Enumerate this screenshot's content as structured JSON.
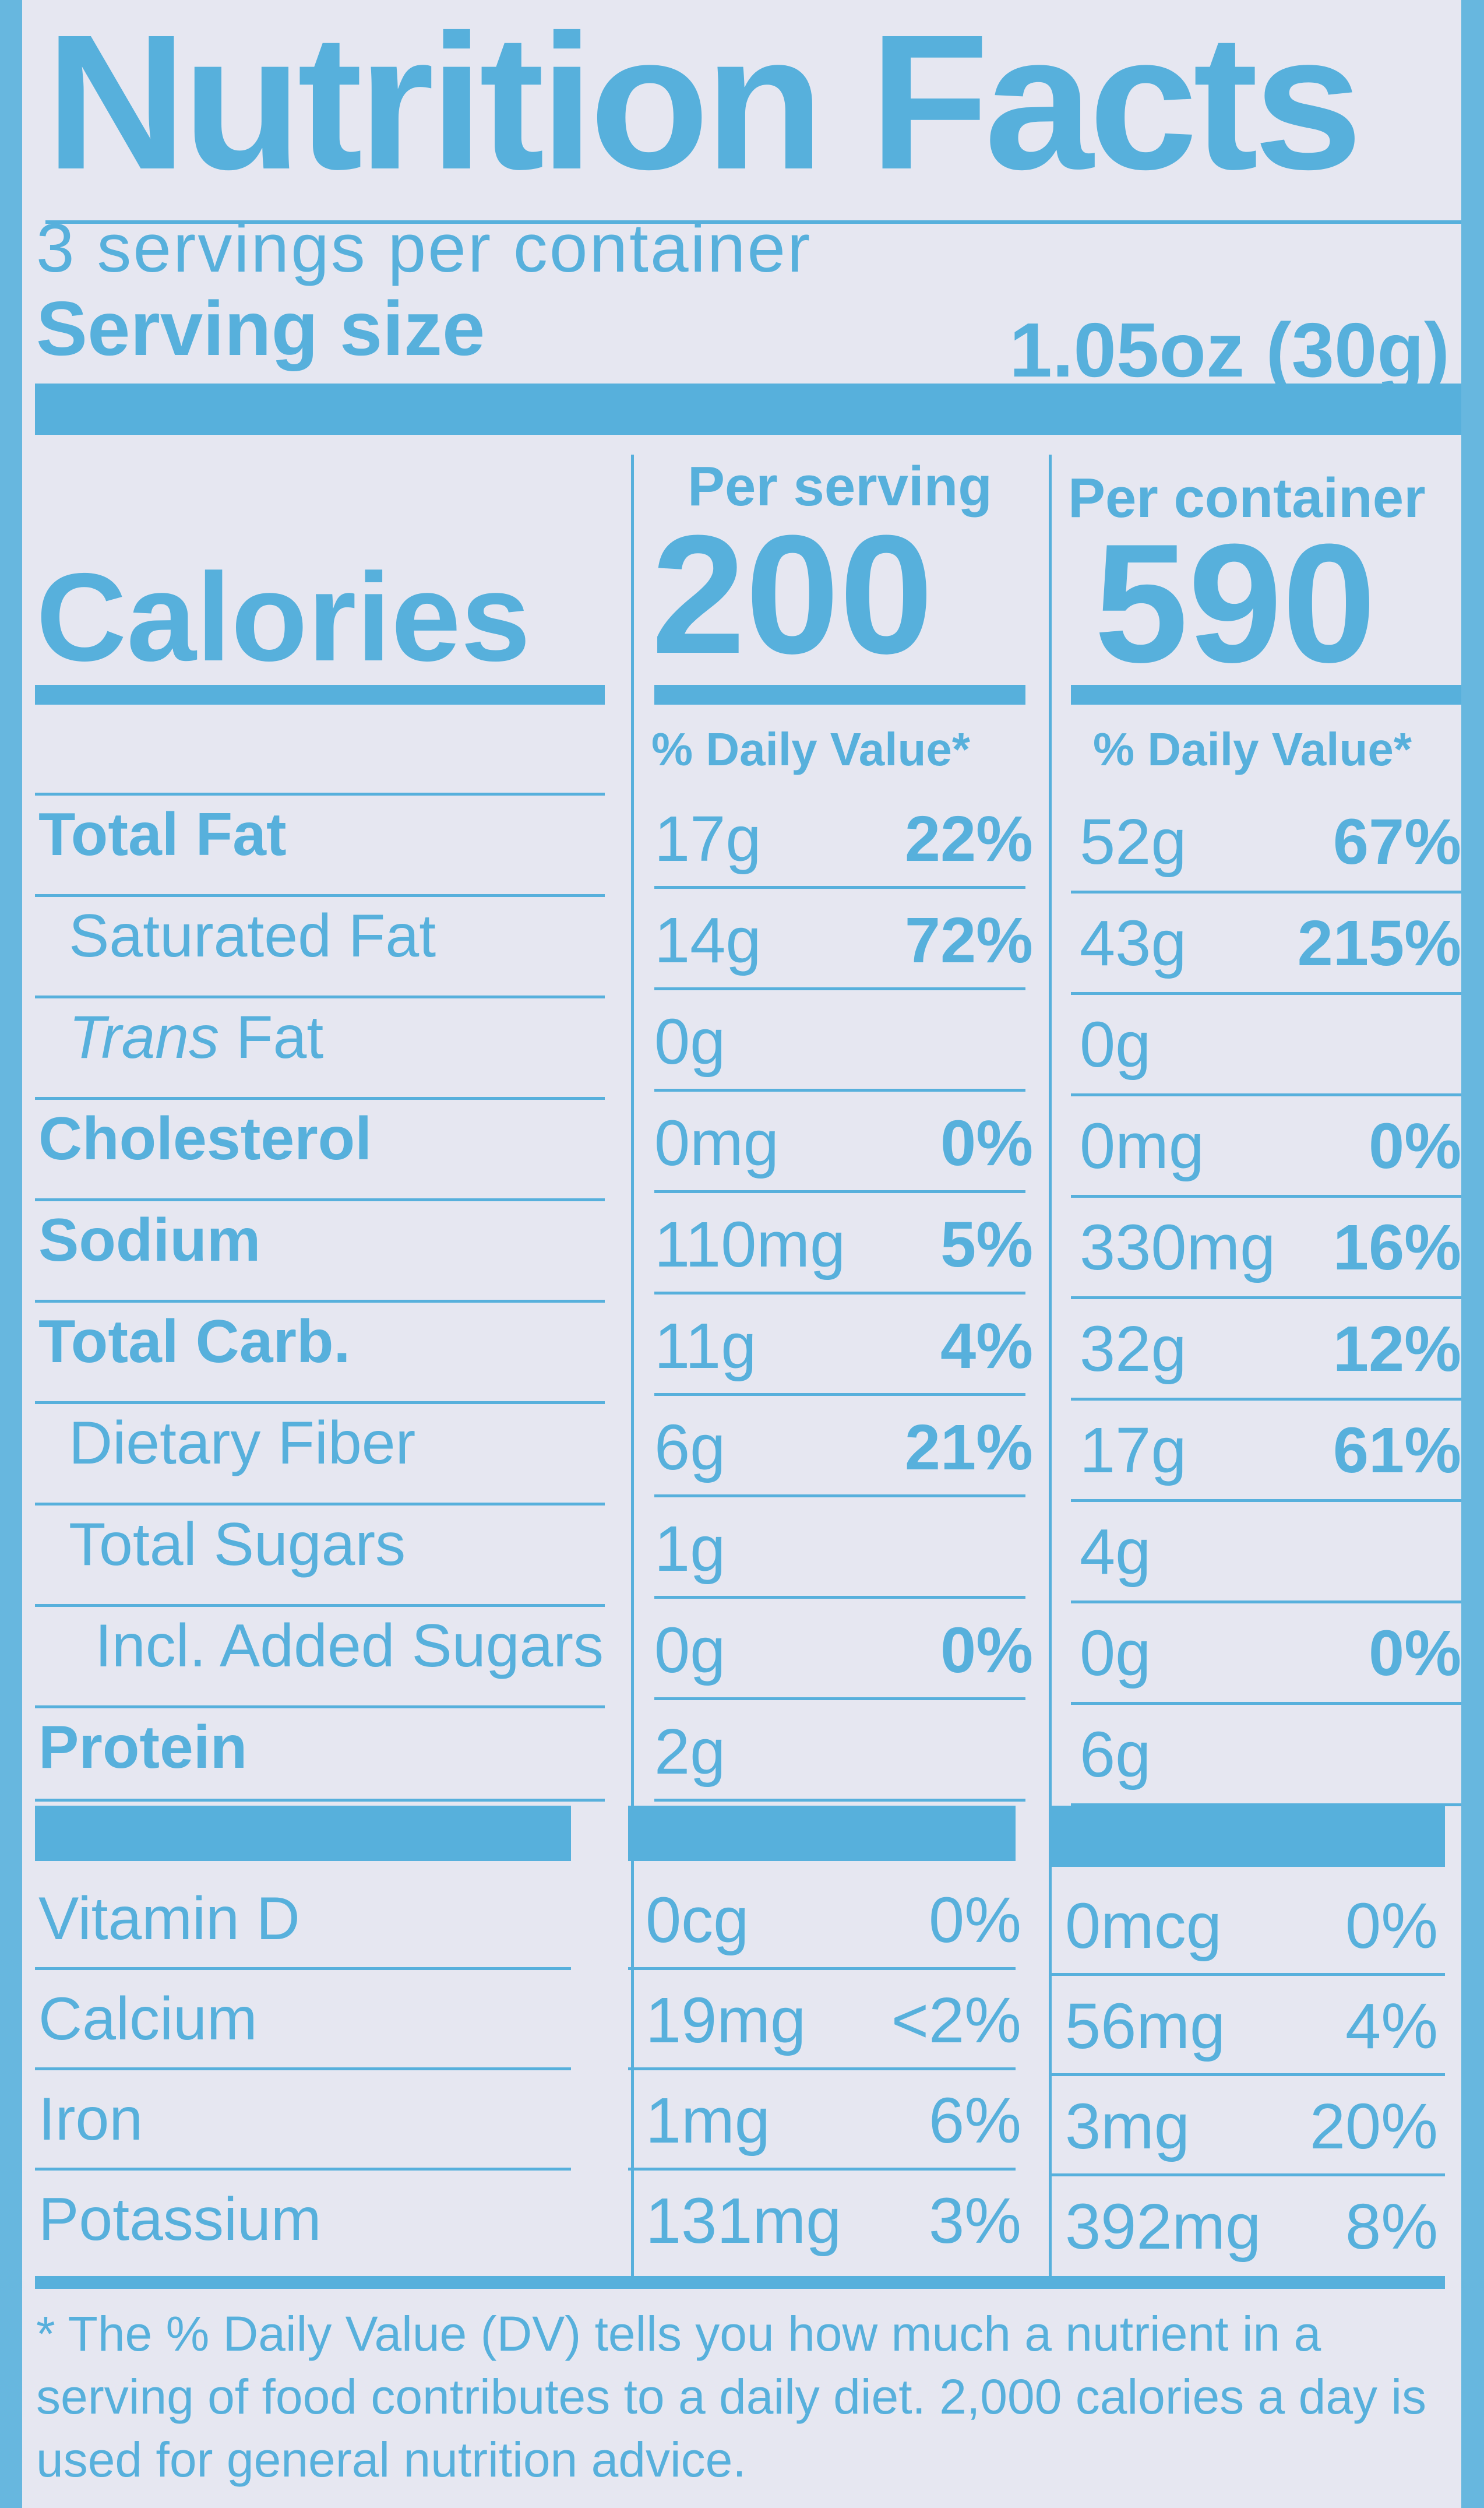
{
  "title": "Nutrition Facts",
  "servings_per_container": "3 servings per container",
  "serving_size": {
    "label": "Serving size",
    "value": "1.05oz (30g)"
  },
  "columns": {
    "per_serving": "Per serving",
    "per_container": "Per container",
    "daily_value_header": "% Daily Value*"
  },
  "calories": {
    "label": "Calories",
    "per_serving": "200",
    "per_container": "590"
  },
  "nutrients": [
    {
      "name": "Total Fat",
      "style": "bold",
      "serving_amount": "17g",
      "serving_dv": "22%",
      "container_amount": "52g",
      "container_dv": "67%"
    },
    {
      "name": "Saturated Fat",
      "style": "indent",
      "serving_amount": "14g",
      "serving_dv": "72%",
      "container_amount": "43g",
      "container_dv": "215%"
    },
    {
      "name_italic": "Trans",
      "name": "Fat",
      "style": "indent",
      "serving_amount": "0g",
      "serving_dv": "",
      "container_amount": "0g",
      "container_dv": ""
    },
    {
      "name": "Cholesterol",
      "style": "bold",
      "serving_amount": "0mg",
      "serving_dv": "0%",
      "container_amount": "0mg",
      "container_dv": "0%"
    },
    {
      "name": "Sodium",
      "style": "bold",
      "serving_amount": "110mg",
      "serving_dv": "5%",
      "container_amount": "330mg",
      "container_dv": "16%"
    },
    {
      "name": "Total Carb.",
      "style": "bold",
      "serving_amount": "11g",
      "serving_dv": "4%",
      "container_amount": "32g",
      "container_dv": "12%"
    },
    {
      "name": "Dietary Fiber",
      "style": "indent",
      "serving_amount": "6g",
      "serving_dv": "21%",
      "container_amount": "17g",
      "container_dv": "61%"
    },
    {
      "name": "Total Sugars",
      "style": "indent",
      "serving_amount": "1g",
      "serving_dv": "",
      "container_amount": "4g",
      "container_dv": ""
    },
    {
      "name": "Incl. Added Sugars",
      "style": "indent2",
      "serving_amount": "0g",
      "serving_dv": "0%",
      "container_amount": "0g",
      "container_dv": "0%"
    },
    {
      "name": "Protein",
      "style": "bold",
      "serving_amount": "2g",
      "serving_dv": "",
      "container_amount": "6g",
      "container_dv": ""
    }
  ],
  "vitamins": [
    {
      "name": "Vitamin D",
      "serving_amount": "0cg",
      "serving_dv": "0%",
      "container_amount": "0mcg",
      "container_dv": "0%"
    },
    {
      "name": "Calcium",
      "serving_amount": "19mg",
      "serving_dv": "<2%",
      "container_amount": "56mg",
      "container_dv": "4%"
    },
    {
      "name": "Iron",
      "serving_amount": "1mg",
      "serving_dv": "6%",
      "container_amount": "3mg",
      "container_dv": "20%"
    },
    {
      "name": "Potassium",
      "serving_amount": "131mg",
      "serving_dv": "3%",
      "container_amount": "392mg",
      "container_dv": "8%"
    }
  ],
  "footnote": "* The % Daily Value (DV) tells you how much a nutrient in a serving of food contributes to a daily diet. 2,000 calories a day is used for general nutrition advice.",
  "colors": {
    "ink": "#57b0dc",
    "panel": "#e6e7f1",
    "border": "#67b7df"
  }
}
